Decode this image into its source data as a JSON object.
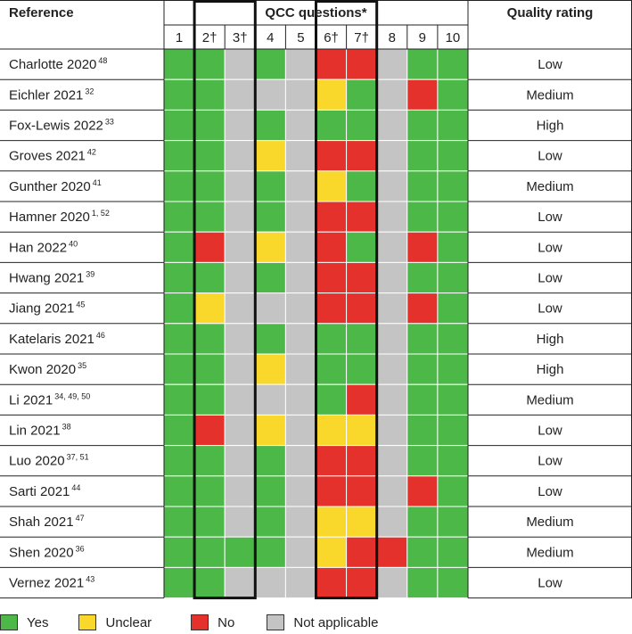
{
  "chart_data": {
    "type": "table",
    "header": {
      "reference": "Reference",
      "group": "QCC questions*",
      "rating": "Quality rating"
    },
    "questions": [
      "1",
      "2†",
      "3†",
      "4",
      "5",
      "6†",
      "7†",
      "8",
      "9",
      "10"
    ],
    "highlighted_groups": [
      [
        2,
        3
      ],
      [
        6,
        7
      ]
    ],
    "colors": {
      "Y": "#4cb848",
      "U": "#f9d82b",
      "N": "#e4312b",
      "NA": "#c4c4c4"
    },
    "rows": [
      {
        "ref": "Charlotte 2020",
        "sup": "48",
        "cells": [
          "Y",
          "Y",
          "NA",
          "Y",
          "NA",
          "N",
          "N",
          "NA",
          "Y",
          "Y"
        ],
        "rating": "Low"
      },
      {
        "ref": "Eichler 2021",
        "sup": "32",
        "cells": [
          "Y",
          "Y",
          "NA",
          "NA",
          "NA",
          "U",
          "Y",
          "NA",
          "N",
          "Y"
        ],
        "rating": "Medium"
      },
      {
        "ref": "Fox-Lewis 2022",
        "sup": "33",
        "cells": [
          "Y",
          "Y",
          "NA",
          "Y",
          "NA",
          "Y",
          "Y",
          "NA",
          "Y",
          "Y"
        ],
        "rating": "High"
      },
      {
        "ref": "Groves 2021",
        "sup": "42",
        "cells": [
          "Y",
          "Y",
          "NA",
          "U",
          "NA",
          "N",
          "N",
          "NA",
          "Y",
          "Y"
        ],
        "rating": "Low"
      },
      {
        "ref": "Gunther 2020",
        "sup": "41",
        "cells": [
          "Y",
          "Y",
          "NA",
          "Y",
          "NA",
          "U",
          "Y",
          "NA",
          "Y",
          "Y"
        ],
        "rating": "Medium"
      },
      {
        "ref": "Hamner 2020",
        "sup": "1, 52",
        "cells": [
          "Y",
          "Y",
          "NA",
          "Y",
          "NA",
          "N",
          "N",
          "NA",
          "Y",
          "Y"
        ],
        "rating": "Low"
      },
      {
        "ref": "Han 2022",
        "sup": "40",
        "cells": [
          "Y",
          "N",
          "NA",
          "U",
          "NA",
          "N",
          "Y",
          "NA",
          "N",
          "Y"
        ],
        "rating": "Low"
      },
      {
        "ref": "Hwang 2021",
        "sup": "39",
        "cells": [
          "Y",
          "Y",
          "NA",
          "Y",
          "NA",
          "N",
          "N",
          "NA",
          "Y",
          "Y"
        ],
        "rating": "Low"
      },
      {
        "ref": "Jiang 2021",
        "sup": "45",
        "cells": [
          "Y",
          "U",
          "NA",
          "NA",
          "NA",
          "N",
          "N",
          "NA",
          "N",
          "Y"
        ],
        "rating": "Low"
      },
      {
        "ref": "Katelaris 2021",
        "sup": "46",
        "cells": [
          "Y",
          "Y",
          "NA",
          "Y",
          "NA",
          "Y",
          "Y",
          "NA",
          "Y",
          "Y"
        ],
        "rating": "High"
      },
      {
        "ref": "Kwon 2020",
        "sup": "35",
        "cells": [
          "Y",
          "Y",
          "NA",
          "U",
          "NA",
          "Y",
          "Y",
          "NA",
          "Y",
          "Y"
        ],
        "rating": "High"
      },
      {
        "ref": "Li 2021",
        "sup": "34, 49, 50",
        "cells": [
          "Y",
          "Y",
          "NA",
          "NA",
          "NA",
          "Y",
          "N",
          "NA",
          "Y",
          "Y"
        ],
        "rating": "Medium"
      },
      {
        "ref": "Lin 2021",
        "sup": "38",
        "cells": [
          "Y",
          "N",
          "NA",
          "U",
          "NA",
          "U",
          "U",
          "NA",
          "Y",
          "Y"
        ],
        "rating": "Low"
      },
      {
        "ref": "Luo 2020",
        "sup": "37, 51",
        "cells": [
          "Y",
          "Y",
          "NA",
          "Y",
          "NA",
          "N",
          "N",
          "NA",
          "Y",
          "Y"
        ],
        "rating": "Low"
      },
      {
        "ref": "Sarti 2021",
        "sup": "44",
        "cells": [
          "Y",
          "Y",
          "NA",
          "Y",
          "NA",
          "N",
          "N",
          "NA",
          "N",
          "Y"
        ],
        "rating": "Low"
      },
      {
        "ref": "Shah 2021",
        "sup": "47",
        "cells": [
          "Y",
          "Y",
          "NA",
          "Y",
          "NA",
          "U",
          "U",
          "NA",
          "Y",
          "Y"
        ],
        "rating": "Medium"
      },
      {
        "ref": "Shen 2020",
        "sup": "36",
        "cells": [
          "Y",
          "Y",
          "Y",
          "Y",
          "NA",
          "U",
          "N",
          "N",
          "Y",
          "Y"
        ],
        "rating": "Medium"
      },
      {
        "ref": "Vernez 2021",
        "sup": "43",
        "cells": [
          "Y",
          "Y",
          "NA",
          "NA",
          "NA",
          "N",
          "N",
          "NA",
          "Y",
          "Y"
        ],
        "rating": "Low"
      }
    ]
  },
  "legend": [
    {
      "key": "Y",
      "label": "Yes"
    },
    {
      "key": "U",
      "label": "Unclear"
    },
    {
      "key": "N",
      "label": "No"
    },
    {
      "key": "NA",
      "label": "Not applicable"
    }
  ]
}
